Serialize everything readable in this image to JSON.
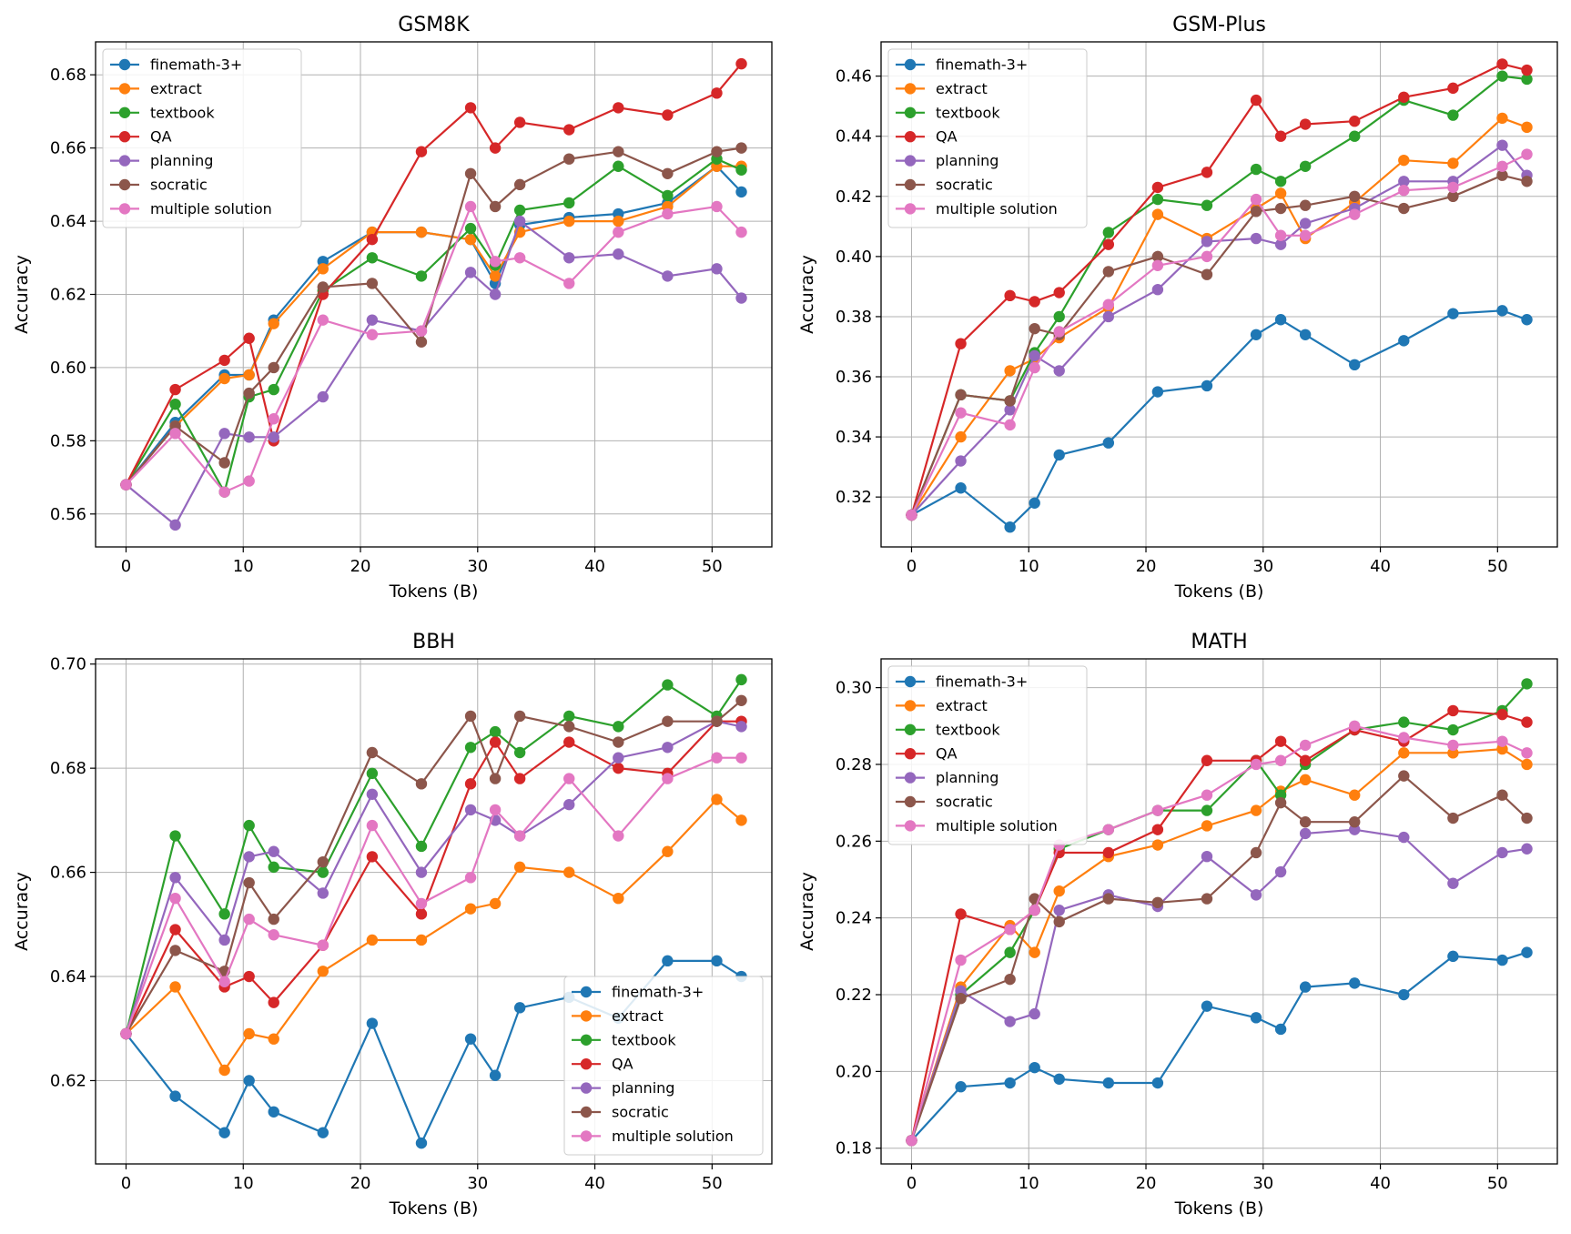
{
  "colors": {
    "finemath-3+": "#1f77b4",
    "extract": "#ff7f0e",
    "textbook": "#2ca02c",
    "QA": "#d62728",
    "planning": "#9467bd",
    "socratic": "#8c564b",
    "multiple solution": "#e377c2"
  },
  "chart_data": [
    {
      "type": "line",
      "title": "GSM8K",
      "xlabel": "Tokens (B)",
      "ylabel": "Accuracy",
      "xlim": [
        -2.6,
        55.1
      ],
      "ylim": [
        0.551,
        0.689
      ],
      "xticks": [
        "0",
        "10",
        "20",
        "30",
        "40",
        "50"
      ],
      "xtick_values": [
        0,
        10,
        20,
        30,
        40,
        50
      ],
      "yticks": [
        "0.56",
        "0.58",
        "0.60",
        "0.62",
        "0.64",
        "0.66",
        "0.68"
      ],
      "ytick_values": [
        0.56,
        0.58,
        0.6,
        0.62,
        0.64,
        0.66,
        0.68
      ],
      "grid": true,
      "legend_position": "upper-left",
      "x": [
        0,
        4.2,
        8.4,
        10.5,
        12.6,
        16.8,
        21.0,
        25.2,
        29.4,
        31.5,
        33.6,
        37.8,
        42.0,
        46.2,
        50.4,
        52.5
      ],
      "series": [
        {
          "name": "finemath-3+",
          "values": [
            0.568,
            0.585,
            0.598,
            0.598,
            0.613,
            0.629,
            0.637,
            0.637,
            0.635,
            0.623,
            0.639,
            0.641,
            0.642,
            0.645,
            0.655,
            0.648
          ]
        },
        {
          "name": "extract",
          "values": [
            0.568,
            0.584,
            0.597,
            0.598,
            0.612,
            0.627,
            0.637,
            0.637,
            0.635,
            0.625,
            0.637,
            0.64,
            0.64,
            0.644,
            0.655,
            0.655
          ]
        },
        {
          "name": "textbook",
          "values": [
            0.568,
            0.59,
            0.566,
            0.592,
            0.594,
            0.621,
            0.63,
            0.625,
            0.638,
            0.628,
            0.643,
            0.645,
            0.655,
            0.647,
            0.657,
            0.654
          ]
        },
        {
          "name": "QA",
          "values": [
            0.568,
            0.594,
            0.602,
            0.608,
            0.58,
            0.62,
            0.635,
            0.659,
            0.671,
            0.66,
            0.667,
            0.665,
            0.671,
            0.669,
            0.675,
            0.683
          ]
        },
        {
          "name": "planning",
          "values": [
            0.568,
            0.557,
            0.582,
            0.581,
            0.581,
            0.592,
            0.613,
            0.61,
            0.626,
            0.62,
            0.64,
            0.63,
            0.631,
            0.625,
            0.627,
            0.619
          ]
        },
        {
          "name": "socratic",
          "values": [
            0.568,
            0.584,
            0.574,
            0.593,
            0.6,
            0.622,
            0.623,
            0.607,
            0.653,
            0.644,
            0.65,
            0.657,
            0.659,
            0.653,
            0.659,
            0.66
          ]
        },
        {
          "name": "multiple solution",
          "values": [
            0.568,
            0.582,
            0.566,
            0.569,
            0.586,
            0.613,
            0.609,
            0.61,
            0.644,
            0.629,
            0.63,
            0.623,
            0.637,
            0.642,
            0.644,
            0.637
          ]
        }
      ]
    },
    {
      "type": "line",
      "title": "GSM-Plus",
      "xlabel": "Tokens (B)",
      "ylabel": "Accuracy",
      "xlim": [
        -2.6,
        55.1
      ],
      "ylim": [
        0.3034,
        0.4714
      ],
      "xticks": [
        "0",
        "10",
        "20",
        "30",
        "40",
        "50"
      ],
      "xtick_values": [
        0,
        10,
        20,
        30,
        40,
        50
      ],
      "yticks": [
        "0.32",
        "0.34",
        "0.36",
        "0.38",
        "0.40",
        "0.42",
        "0.44",
        "0.46"
      ],
      "ytick_values": [
        0.32,
        0.34,
        0.36,
        0.38,
        0.4,
        0.42,
        0.44,
        0.46
      ],
      "grid": true,
      "legend_position": "upper-left",
      "x": [
        0,
        4.2,
        8.4,
        10.5,
        12.6,
        16.8,
        21.0,
        25.2,
        29.4,
        31.5,
        33.6,
        37.8,
        42.0,
        46.2,
        50.4,
        52.5
      ],
      "series": [
        {
          "name": "finemath-3+",
          "values": [
            0.314,
            0.323,
            0.31,
            0.318,
            0.334,
            0.338,
            0.355,
            0.357,
            0.374,
            0.379,
            0.374,
            0.364,
            0.372,
            0.381,
            0.382,
            0.379
          ]
        },
        {
          "name": "extract",
          "values": [
            0.314,
            0.34,
            0.362,
            0.366,
            0.373,
            0.383,
            0.414,
            0.406,
            0.416,
            0.421,
            0.406,
            0.418,
            0.432,
            0.431,
            0.446,
            0.443
          ]
        },
        {
          "name": "textbook",
          "values": [
            0.314,
            0.354,
            0.352,
            0.368,
            0.38,
            0.408,
            0.419,
            0.417,
            0.429,
            0.425,
            0.43,
            0.44,
            0.452,
            0.447,
            0.46,
            0.459
          ]
        },
        {
          "name": "QA",
          "values": [
            0.314,
            0.371,
            0.387,
            0.385,
            0.388,
            0.404,
            0.423,
            0.428,
            0.452,
            0.44,
            0.444,
            0.445,
            0.453,
            0.456,
            0.464,
            0.462
          ]
        },
        {
          "name": "planning",
          "values": [
            0.314,
            0.332,
            0.349,
            0.367,
            0.362,
            0.38,
            0.389,
            0.405,
            0.406,
            0.404,
            0.411,
            0.416,
            0.425,
            0.425,
            0.437,
            0.427
          ]
        },
        {
          "name": "socratic",
          "values": [
            0.314,
            0.354,
            0.352,
            0.376,
            0.374,
            0.395,
            0.4,
            0.394,
            0.415,
            0.416,
            0.417,
            0.42,
            0.416,
            0.42,
            0.427,
            0.425
          ]
        },
        {
          "name": "multiple solution",
          "values": [
            0.314,
            0.348,
            0.344,
            0.363,
            0.375,
            0.384,
            0.397,
            0.4,
            0.419,
            0.407,
            0.407,
            0.414,
            0.422,
            0.423,
            0.43,
            0.434
          ]
        }
      ]
    },
    {
      "type": "line",
      "title": "BBH",
      "xlabel": "Tokens (B)",
      "ylabel": "Accuracy",
      "xlim": [
        -2.6,
        55.1
      ],
      "ylim": [
        0.604,
        0.701
      ],
      "xticks": [
        "0",
        "10",
        "20",
        "30",
        "40",
        "50"
      ],
      "xtick_values": [
        0,
        10,
        20,
        30,
        40,
        50
      ],
      "yticks": [
        "0.62",
        "0.64",
        "0.66",
        "0.68",
        "0.70"
      ],
      "ytick_values": [
        0.62,
        0.64,
        0.66,
        0.68,
        0.7
      ],
      "grid": true,
      "legend_position": "lower-right",
      "x": [
        0,
        4.2,
        8.4,
        10.5,
        12.6,
        16.8,
        21.0,
        25.2,
        29.4,
        31.5,
        33.6,
        37.8,
        42.0,
        46.2,
        50.4,
        52.5
      ],
      "series": [
        {
          "name": "finemath-3+",
          "values": [
            0.629,
            0.617,
            0.61,
            0.62,
            0.614,
            0.61,
            0.631,
            0.608,
            0.628,
            0.621,
            0.634,
            0.636,
            0.632,
            0.643,
            0.643,
            0.64
          ]
        },
        {
          "name": "extract",
          "values": [
            0.629,
            0.638,
            0.622,
            0.629,
            0.628,
            0.641,
            0.647,
            0.647,
            0.653,
            0.654,
            0.661,
            0.66,
            0.655,
            0.664,
            0.674,
            0.67
          ]
        },
        {
          "name": "textbook",
          "values": [
            0.629,
            0.667,
            0.652,
            0.669,
            0.661,
            0.66,
            0.679,
            0.665,
            0.684,
            0.687,
            0.683,
            0.69,
            0.688,
            0.696,
            0.69,
            0.697
          ]
        },
        {
          "name": "QA",
          "values": [
            0.629,
            0.649,
            0.638,
            0.64,
            0.635,
            0.646,
            0.663,
            0.652,
            0.677,
            0.685,
            0.678,
            0.685,
            0.68,
            0.679,
            0.689,
            0.689
          ]
        },
        {
          "name": "planning",
          "values": [
            0.629,
            0.659,
            0.647,
            0.663,
            0.664,
            0.656,
            0.675,
            0.66,
            0.672,
            0.67,
            0.667,
            0.673,
            0.682,
            0.684,
            0.689,
            0.688
          ]
        },
        {
          "name": "socratic",
          "values": [
            0.629,
            0.645,
            0.641,
            0.658,
            0.651,
            0.662,
            0.683,
            0.677,
            0.69,
            0.678,
            0.69,
            0.688,
            0.685,
            0.689,
            0.689,
            0.693
          ]
        },
        {
          "name": "multiple solution",
          "values": [
            0.629,
            0.655,
            0.639,
            0.651,
            0.648,
            0.646,
            0.669,
            0.654,
            0.659,
            0.672,
            0.667,
            0.678,
            0.667,
            0.678,
            0.682,
            0.682
          ]
        }
      ]
    },
    {
      "type": "line",
      "title": "MATH",
      "xlabel": "Tokens (B)",
      "ylabel": "Accuracy",
      "xlim": [
        -2.6,
        55.1
      ],
      "ylim": [
        0.1759,
        0.3075
      ],
      "xticks": [
        "0",
        "10",
        "20",
        "30",
        "40",
        "50"
      ],
      "xtick_values": [
        0,
        10,
        20,
        30,
        40,
        50
      ],
      "yticks": [
        "0.18",
        "0.20",
        "0.22",
        "0.24",
        "0.26",
        "0.28",
        "0.30"
      ],
      "ytick_values": [
        0.18,
        0.2,
        0.22,
        0.24,
        0.26,
        0.28,
        0.3
      ],
      "grid": true,
      "legend_position": "upper-left",
      "x": [
        0,
        4.2,
        8.4,
        10.5,
        12.6,
        16.8,
        21.0,
        25.2,
        29.4,
        31.5,
        33.6,
        37.8,
        42.0,
        46.2,
        50.4,
        52.5
      ],
      "series": [
        {
          "name": "finemath-3+",
          "values": [
            0.182,
            0.196,
            0.197,
            0.201,
            0.198,
            0.197,
            0.197,
            0.217,
            0.214,
            0.211,
            0.222,
            0.223,
            0.22,
            0.23,
            0.229,
            0.231
          ]
        },
        {
          "name": "extract",
          "values": [
            0.182,
            0.222,
            0.238,
            0.231,
            0.247,
            0.256,
            0.259,
            0.264,
            0.268,
            0.273,
            0.276,
            0.272,
            0.283,
            0.283,
            0.284,
            0.28
          ]
        },
        {
          "name": "textbook",
          "values": [
            0.182,
            0.22,
            0.231,
            0.242,
            0.258,
            0.263,
            0.268,
            0.268,
            0.281,
            0.272,
            0.28,
            0.289,
            0.291,
            0.289,
            0.294,
            0.301
          ]
        },
        {
          "name": "QA",
          "values": [
            0.182,
            0.241,
            0.237,
            0.242,
            0.257,
            0.257,
            0.263,
            0.281,
            0.281,
            0.286,
            0.281,
            0.289,
            0.286,
            0.294,
            0.293,
            0.291
          ]
        },
        {
          "name": "planning",
          "values": [
            0.182,
            0.221,
            0.213,
            0.215,
            0.242,
            0.246,
            0.243,
            0.256,
            0.246,
            0.252,
            0.262,
            0.263,
            0.261,
            0.249,
            0.257,
            0.258
          ]
        },
        {
          "name": "socratic",
          "values": [
            0.182,
            0.219,
            0.224,
            0.245,
            0.239,
            0.245,
            0.244,
            0.245,
            0.257,
            0.27,
            0.265,
            0.265,
            0.277,
            0.266,
            0.272,
            0.266
          ]
        },
        {
          "name": "multiple solution",
          "values": [
            0.182,
            0.229,
            0.237,
            0.242,
            0.259,
            0.263,
            0.268,
            0.272,
            0.28,
            0.281,
            0.285,
            0.29,
            0.287,
            0.285,
            0.286,
            0.283
          ]
        }
      ]
    }
  ]
}
